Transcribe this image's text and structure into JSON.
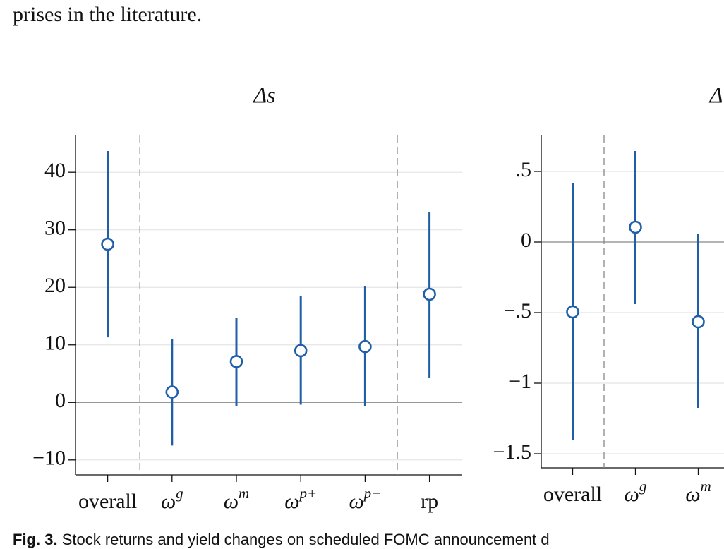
{
  "text_above": "prises in the literature.",
  "caption": {
    "label": "Fig. 3.",
    "text": "Stock returns and yield changes on scheduled FOMC announcement d"
  },
  "chart_data": [
    {
      "type": "errorbar",
      "title": "Δs",
      "categories": [
        "overall",
        "ωg",
        "ωm",
        "ωp+",
        "ωp−",
        "rp"
      ],
      "series": [
        {
          "color": "#1f5fa8",
          "values": [
            27.5,
            1.8,
            7.1,
            9.0,
            9.7,
            18.8
          ],
          "lower": [
            11.3,
            -7.5,
            -0.6,
            -0.4,
            -0.7,
            4.3
          ],
          "upper": [
            43.7,
            11.0,
            14.7,
            18.5,
            20.2,
            33.1
          ]
        }
      ],
      "ylim": [
        -12.6,
        46.4
      ],
      "yticks": [
        {
          "value": -10,
          "label": "−10"
        },
        0,
        10,
        20,
        30,
        40
      ],
      "grid": true,
      "dividers": [
        1,
        5
      ]
    },
    {
      "type": "errorbar",
      "title": "Δ",
      "categories": [
        "overall",
        "ωg",
        "ωm"
      ],
      "series": [
        {
          "color": "#1f5fa8",
          "values": [
            -0.495,
            0.105,
            -0.565
          ],
          "lower": [
            -1.405,
            -0.44,
            -1.175
          ],
          "upper": [
            0.42,
            0.645,
            0.055
          ]
        }
      ],
      "ylim": [
        -1.6,
        0.755
      ],
      "yticks": [
        {
          "value": -1.5,
          "label": "−1.5"
        },
        {
          "value": -1,
          "label": "−1"
        },
        {
          "value": -0.5,
          "label": "−.5"
        },
        0,
        {
          "value": 0.5,
          "label": ".5"
        }
      ],
      "grid": true,
      "dividers": [
        1
      ]
    }
  ]
}
